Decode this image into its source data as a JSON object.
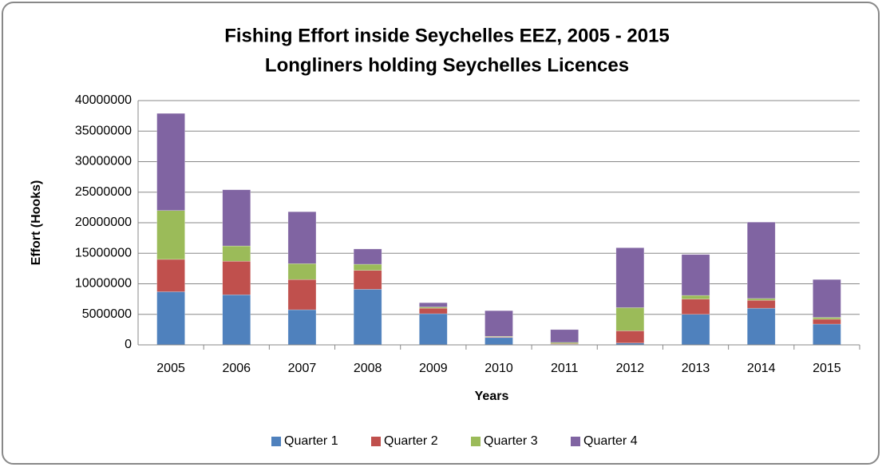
{
  "chart_data": {
    "type": "stacked_bar",
    "title": "Fishing Effort inside Seychelles EEZ, 2005 - 2015",
    "subtitle": "Longliners holding Seychelles Licences",
    "x_label": "Years",
    "y_label": "Effort (Hooks)",
    "categories": [
      "2005",
      "2006",
      "2007",
      "2008",
      "2009",
      "2010",
      "2011",
      "2012",
      "2013",
      "2014",
      "2015"
    ],
    "series": [
      {
        "name": "Quarter 1",
        "color": "#4f81bd",
        "values": [
          8700000,
          8200000,
          5750000,
          9100000,
          5100000,
          1200000,
          100000,
          300000,
          5000000,
          6000000,
          3400000
        ]
      },
      {
        "name": "Quarter 2",
        "color": "#c0504d",
        "values": [
          5300000,
          5500000,
          4950000,
          3100000,
          900000,
          100000,
          100000,
          2000000,
          2500000,
          1300000,
          800000
        ]
      },
      {
        "name": "Quarter 3",
        "color": "#9bbb59",
        "values": [
          8000000,
          2500000,
          2600000,
          1000000,
          200000,
          100000,
          200000,
          3800000,
          600000,
          300000,
          300000
        ]
      },
      {
        "name": "Quarter 4",
        "color": "#8064a2",
        "values": [
          15900000,
          9200000,
          8500000,
          2500000,
          700000,
          4200000,
          2100000,
          9800000,
          6700000,
          12500000,
          6200000
        ]
      }
    ],
    "ylim": [
      0,
      40000000
    ],
    "yticks": [
      0,
      5000000,
      10000000,
      15000000,
      20000000,
      25000000,
      30000000,
      35000000,
      40000000
    ],
    "grid": true,
    "legend": "bottom"
  }
}
